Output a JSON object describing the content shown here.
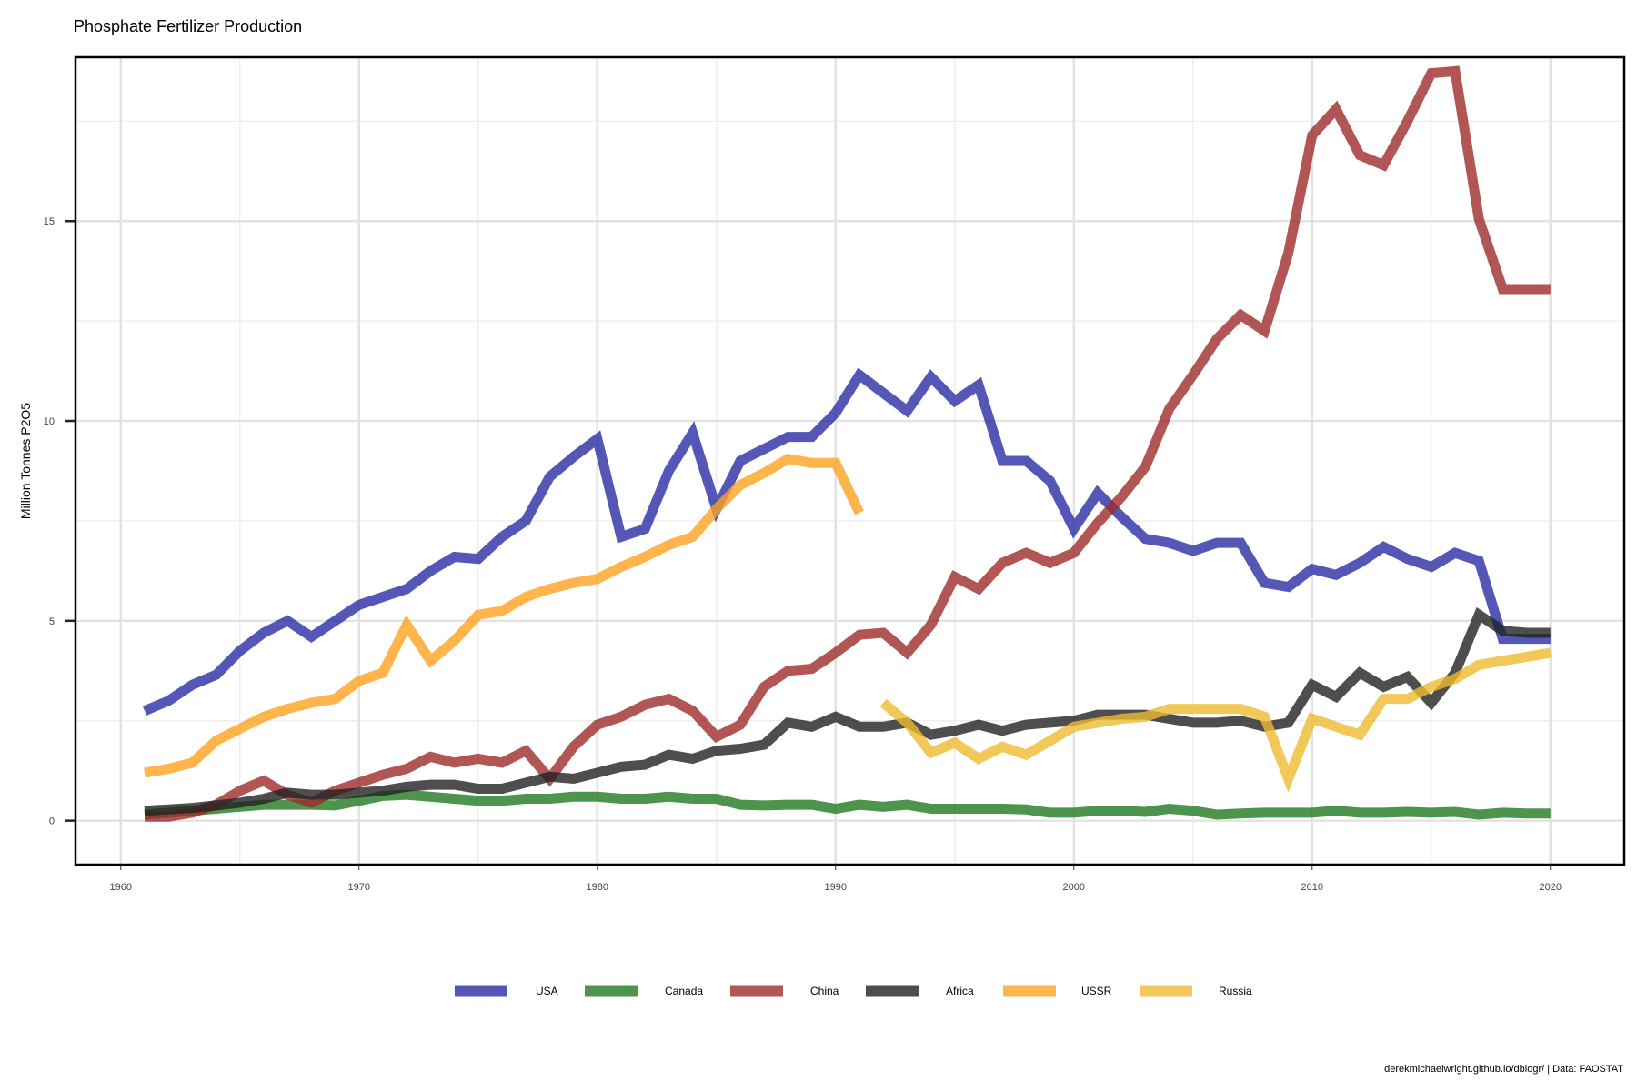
{
  "chart_data": {
    "type": "line",
    "title": "Phosphate Fertilizer Production",
    "xlabel": "",
    "ylabel": "Million Tonnes P2O5",
    "xlim": [
      1958.1,
      2023.1
    ],
    "ylim": [
      -1.1,
      19.1
    ],
    "x_ticks": [
      "1960",
      "1970",
      "1980",
      "1990",
      "2000",
      "2010",
      "2020"
    ],
    "y_ticks": [
      "0",
      "5",
      "10",
      "15"
    ],
    "grid": true,
    "legend_position": "bottom",
    "caption": "derekmichaelwright.github.io/dblogr/ | Data: FAOSTAT",
    "series": [
      {
        "name": "USA",
        "color": "#2a2da5",
        "x": [
          1961,
          1962,
          1963,
          1964,
          1965,
          1966,
          1967,
          1968,
          1969,
          1970,
          1971,
          1972,
          1973,
          1974,
          1975,
          1976,
          1977,
          1978,
          1979,
          1980,
          1981,
          1982,
          1983,
          1984,
          1985,
          1986,
          1987,
          1988,
          1989,
          1990,
          1991,
          1992,
          1993,
          1994,
          1995,
          1996,
          1997,
          1998,
          1999,
          2000,
          2001,
          2002,
          2003,
          2004,
          2005,
          2006,
          2007,
          2008,
          2009,
          2010,
          2011,
          2012,
          2013,
          2014,
          2015,
          2016,
          2017,
          2018,
          2019,
          2020
        ],
        "values": [
          2.75,
          3.0,
          3.4,
          3.65,
          4.25,
          4.7,
          5.0,
          4.6,
          5.0,
          5.4,
          5.6,
          5.8,
          6.25,
          6.6,
          6.55,
          7.1,
          7.5,
          8.6,
          9.1,
          9.55,
          7.1,
          7.3,
          8.75,
          9.7,
          7.8,
          9.0,
          9.3,
          9.6,
          9.6,
          10.2,
          11.15,
          10.7,
          10.25,
          11.1,
          10.5,
          10.9,
          9.0,
          9.0,
          8.5,
          7.3,
          8.2,
          7.6,
          7.05,
          6.95,
          6.75,
          6.95,
          6.95,
          5.95,
          5.85,
          6.3,
          6.15,
          6.45,
          6.85,
          6.55,
          6.35,
          6.7,
          6.5,
          4.55,
          4.55,
          4.55
        ]
      },
      {
        "name": "Canada",
        "color": "#217a21",
        "x": [
          1961,
          1962,
          1963,
          1964,
          1965,
          1966,
          1967,
          1968,
          1969,
          1970,
          1971,
          1972,
          1973,
          1974,
          1975,
          1976,
          1977,
          1978,
          1979,
          1980,
          1981,
          1982,
          1983,
          1984,
          1985,
          1986,
          1987,
          1988,
          1989,
          1990,
          1991,
          1992,
          1993,
          1994,
          1995,
          1996,
          1997,
          1998,
          1999,
          2000,
          2001,
          2002,
          2003,
          2004,
          2005,
          2006,
          2007,
          2008,
          2009,
          2010,
          2011,
          2012,
          2013,
          2014,
          2015,
          2016,
          2017,
          2018,
          2019,
          2020
        ],
        "values": [
          0.15,
          0.2,
          0.25,
          0.3,
          0.35,
          0.4,
          0.4,
          0.4,
          0.38,
          0.5,
          0.62,
          0.65,
          0.6,
          0.55,
          0.5,
          0.5,
          0.55,
          0.55,
          0.6,
          0.6,
          0.55,
          0.55,
          0.6,
          0.55,
          0.55,
          0.4,
          0.38,
          0.4,
          0.4,
          0.3,
          0.4,
          0.35,
          0.4,
          0.3,
          0.3,
          0.3,
          0.3,
          0.28,
          0.2,
          0.2,
          0.25,
          0.25,
          0.22,
          0.3,
          0.25,
          0.15,
          0.18,
          0.2,
          0.2,
          0.2,
          0.25,
          0.2,
          0.2,
          0.22,
          0.2,
          0.22,
          0.15,
          0.2,
          0.18,
          0.18
        ]
      },
      {
        "name": "China",
        "color": "#9e2a2b",
        "x": [
          1961,
          1962,
          1963,
          1964,
          1965,
          1966,
          1967,
          1968,
          1969,
          1970,
          1971,
          1972,
          1973,
          1974,
          1975,
          1976,
          1977,
          1978,
          1979,
          1980,
          1981,
          1982,
          1983,
          1984,
          1985,
          1986,
          1987,
          1988,
          1989,
          1990,
          1991,
          1992,
          1993,
          1994,
          1995,
          1996,
          1997,
          1998,
          1999,
          2000,
          2001,
          2002,
          2003,
          2004,
          2005,
          2006,
          2007,
          2008,
          2009,
          2010,
          2011,
          2012,
          2013,
          2014,
          2015,
          2016,
          2017,
          2018,
          2019,
          2020
        ],
        "values": [
          0.1,
          0.1,
          0.2,
          0.4,
          0.75,
          1.0,
          0.65,
          0.45,
          0.75,
          0.95,
          1.15,
          1.3,
          1.6,
          1.45,
          1.55,
          1.45,
          1.75,
          1.05,
          1.85,
          2.4,
          2.6,
          2.9,
          3.05,
          2.75,
          2.1,
          2.4,
          3.35,
          3.75,
          3.8,
          4.2,
          4.65,
          4.7,
          4.2,
          4.9,
          6.1,
          5.8,
          6.45,
          6.7,
          6.45,
          6.7,
          7.45,
          8.1,
          8.85,
          10.3,
          11.15,
          12.05,
          12.65,
          12.25,
          14.2,
          17.15,
          17.8,
          16.65,
          16.4,
          17.5,
          18.7,
          18.75,
          15.05,
          13.3,
          13.3,
          13.3
        ]
      },
      {
        "name": "Africa",
        "color": "#222222",
        "x": [
          1961,
          1962,
          1963,
          1964,
          1965,
          1966,
          1967,
          1968,
          1969,
          1970,
          1971,
          1972,
          1973,
          1974,
          1975,
          1976,
          1977,
          1978,
          1979,
          1980,
          1981,
          1982,
          1983,
          1984,
          1985,
          1986,
          1987,
          1988,
          1989,
          1990,
          1991,
          1992,
          1993,
          1994,
          1995,
          1996,
          1997,
          1998,
          1999,
          2000,
          2001,
          2002,
          2003,
          2004,
          2005,
          2006,
          2007,
          2008,
          2009,
          2010,
          2011,
          2012,
          2013,
          2014,
          2015,
          2016,
          2017,
          2018,
          2019,
          2020
        ],
        "values": [
          0.25,
          0.28,
          0.32,
          0.38,
          0.45,
          0.55,
          0.7,
          0.65,
          0.65,
          0.7,
          0.75,
          0.85,
          0.9,
          0.9,
          0.8,
          0.8,
          0.95,
          1.1,
          1.05,
          1.2,
          1.35,
          1.4,
          1.65,
          1.55,
          1.75,
          1.8,
          1.9,
          2.45,
          2.35,
          2.6,
          2.35,
          2.35,
          2.45,
          2.15,
          2.25,
          2.4,
          2.25,
          2.4,
          2.45,
          2.5,
          2.65,
          2.65,
          2.65,
          2.55,
          2.45,
          2.45,
          2.5,
          2.35,
          2.45,
          3.4,
          3.1,
          3.7,
          3.35,
          3.6,
          2.95,
          3.7,
          5.15,
          4.75,
          4.7,
          4.7
        ]
      },
      {
        "name": "USSR",
        "color": "#ffa31f",
        "x": [
          1961,
          1962,
          1963,
          1964,
          1965,
          1966,
          1967,
          1968,
          1969,
          1970,
          1971,
          1972,
          1973,
          1974,
          1975,
          1976,
          1977,
          1978,
          1979,
          1980,
          1981,
          1982,
          1983,
          1984,
          1985,
          1986,
          1987,
          1988,
          1989,
          1990,
          1991
        ],
        "values": [
          1.2,
          1.3,
          1.45,
          2.0,
          2.3,
          2.6,
          2.8,
          2.95,
          3.05,
          3.5,
          3.7,
          4.9,
          4.0,
          4.5,
          5.15,
          5.25,
          5.6,
          5.8,
          5.95,
          6.05,
          6.35,
          6.6,
          6.9,
          7.1,
          7.8,
          8.4,
          8.7,
          9.05,
          8.95,
          8.95,
          7.7
        ]
      },
      {
        "name": "Russia",
        "color": "#efbb30",
        "x": [
          1992,
          1993,
          1994,
          1995,
          1996,
          1997,
          1998,
          1999,
          2000,
          2001,
          2002,
          2003,
          2004,
          2005,
          2006,
          2007,
          2008,
          2009,
          2010,
          2011,
          2012,
          2013,
          2014,
          2015,
          2016,
          2017,
          2018,
          2019,
          2020
        ],
        "values": [
          2.95,
          2.45,
          1.7,
          1.95,
          1.55,
          1.85,
          1.65,
          2.0,
          2.35,
          2.45,
          2.55,
          2.6,
          2.8,
          2.8,
          2.8,
          2.8,
          2.6,
          1.05,
          2.55,
          2.35,
          2.15,
          3.05,
          3.05,
          3.35,
          3.55,
          3.9,
          4.0,
          4.1,
          4.2
        ]
      }
    ]
  }
}
